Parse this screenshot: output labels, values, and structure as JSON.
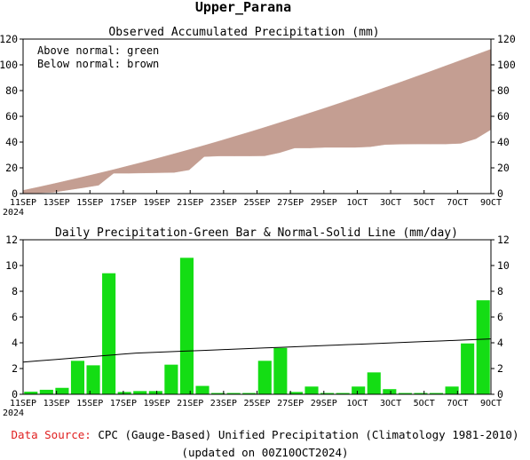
{
  "title": "Upper_Parana",
  "footer": {
    "source_label": "Data Source:",
    "source_text": "CPC (Gauge-Based) Unified Precipitation (Climatology 1981-2010)",
    "updated": "(updated on 00Z10OCT2024)"
  },
  "colors": {
    "below_normal": "#c49e92",
    "above_normal": "#00cc00",
    "bars": "#14dd14",
    "normal_line": "#000000",
    "source_label": "#e02020"
  },
  "chart_data": [
    {
      "type": "area",
      "title": "Observed Accumulated Precipitation (mm)",
      "legend": [
        "Above normal: green",
        "Below normal: brown"
      ],
      "legend_position": "top-left",
      "grid": false,
      "x_start_date": "2024-09-11",
      "x_end_date": "2024-10-09",
      "x_tick_labels": [
        "11SEP",
        "13SEP",
        "15SEP",
        "17SEP",
        "19SEP",
        "21SEP",
        "23SEP",
        "25SEP",
        "27SEP",
        "29SEP",
        "1OCT",
        "3OCT",
        "5OCT",
        "7OCT",
        "9OCT"
      ],
      "x_year_label": "2024",
      "ylim": [
        0,
        120
      ],
      "y_ticks": [
        0,
        20,
        40,
        60,
        80,
        100,
        120
      ],
      "series": [
        {
          "values": [
            0.2,
            0.5,
            1.0,
            2.8,
            4.6,
            6.5,
            15.8,
            15.8,
            16.0,
            16.2,
            16.4,
            18.4,
            28.7,
            29.2,
            29.2,
            29.2,
            29.3,
            31.8,
            35.4,
            35.4,
            35.9,
            35.9,
            35.9,
            36.4,
            38.1,
            38.4,
            38.5,
            38.5,
            38.5,
            39.0,
            42.6,
            49.7
          ]
        },
        {
          "values": [
            2.5,
            5.0,
            7.6,
            10.3,
            13.0,
            15.8,
            18.6,
            21.6,
            24.6,
            27.7,
            30.9,
            34.1,
            37.4,
            40.8,
            44.3,
            47.8,
            51.4,
            55.1,
            58.8,
            62.6,
            66.4,
            70.3,
            74.3,
            78.3,
            82.4,
            86.5,
            90.7,
            94.9,
            99.2,
            103.5,
            107.8,
            112.1
          ]
        }
      ]
    },
    {
      "type": "bar",
      "title": "Daily Precipitation-Green Bar & Normal-Solid Line (mm/day)",
      "grid": false,
      "x_start_date": "2024-09-11",
      "x_end_date": "2024-10-09",
      "x_tick_labels": [
        "11SEP",
        "13SEP",
        "15SEP",
        "17SEP",
        "19SEP",
        "21SEP",
        "23SEP",
        "25SEP",
        "27SEP",
        "29SEP",
        "1OCT",
        "3OCT",
        "5OCT",
        "7OCT",
        "9OCT"
      ],
      "x_year_label": "2024",
      "ylim": [
        0,
        12
      ],
      "y_ticks": [
        0,
        2,
        4,
        6,
        8,
        10,
        12
      ],
      "series": [
        {
          "values": [
            0.2,
            0.35,
            0.5,
            2.6,
            2.25,
            9.4,
            0.18,
            0.25,
            0.25,
            2.3,
            10.6,
            0.65,
            0.1,
            0.1,
            0.1,
            2.6,
            3.6,
            0.18,
            0.6,
            0.1,
            0.1,
            0.6,
            1.7,
            0.4,
            0.1,
            0.1,
            0.1,
            0.6,
            3.95,
            7.3
          ]
        },
        {
          "type": "line",
          "values": [
            2.5,
            2.6,
            2.7,
            2.8,
            2.9,
            3.0,
            3.1,
            3.2,
            3.25,
            3.3,
            3.35,
            3.4,
            3.45,
            3.5,
            3.55,
            3.6,
            3.65,
            3.7,
            3.75,
            3.8,
            3.85,
            3.9,
            3.95,
            4.0,
            4.05,
            4.1,
            4.15,
            4.2,
            4.25,
            4.3
          ]
        }
      ]
    }
  ]
}
